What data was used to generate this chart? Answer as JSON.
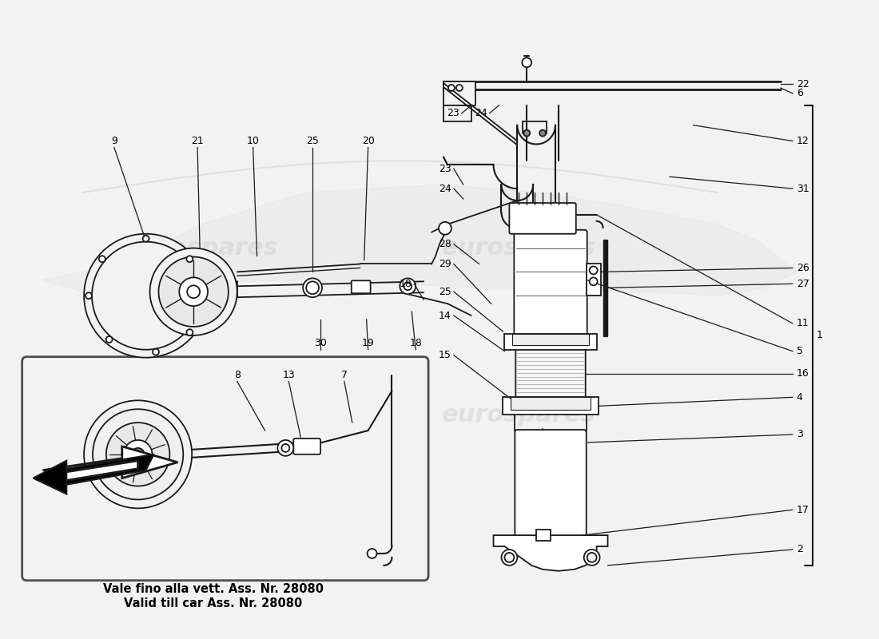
{
  "bg_color": "#f2f2f2",
  "line_color": "#1a1a1a",
  "note_line1": "Vale fino alla vett. Ass. Nr. 28080",
  "note_line2": "Valid till car Ass. Nr. 28080",
  "wm_color": "#d0d0d0",
  "wm_text": "eurospares"
}
